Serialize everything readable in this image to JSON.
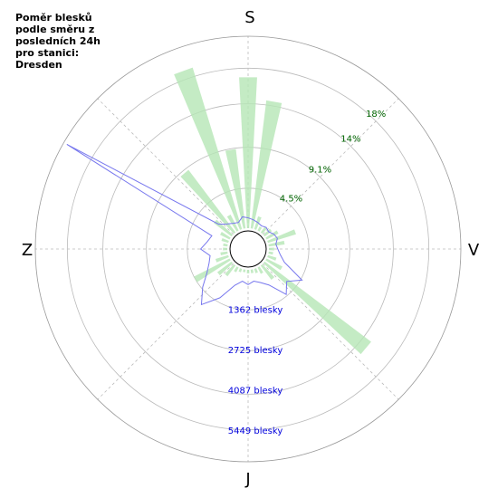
{
  "chart_data": {
    "type": "polar",
    "title": [
      "Poměr blesků",
      "podle směru z",
      "posledních 24h",
      "pro stanici:",
      "Dresden"
    ],
    "compass": [
      "S",
      "V",
      "J",
      "Z"
    ],
    "directions": [
      0,
      10,
      20,
      30,
      40,
      50,
      60,
      70,
      80,
      90,
      100,
      110,
      120,
      130,
      140,
      150,
      160,
      170,
      180,
      190,
      200,
      210,
      220,
      230,
      240,
      250,
      260,
      270,
      280,
      290,
      300,
      310,
      320,
      330,
      340,
      350
    ],
    "series": [
      {
        "color": "#b5e6b5",
        "axis": "r",
        "values": [
          17,
          14.5,
          1.5,
          0.5,
          0.8,
          1,
          1.5,
          3.3,
          1.8,
          0.6,
          0.5,
          1,
          2,
          15,
          2,
          0.8,
          0.5,
          0.4,
          0.4,
          0.3,
          0.4,
          0.6,
          1.5,
          2,
          4.5,
          1.5,
          0.8,
          0.5,
          0.5,
          0.8,
          1.2,
          2.5,
          8.8,
          2,
          19,
          9
        ]
      },
      {
        "color": "#7777ee",
        "axis": "r2",
        "values": [
          350,
          300,
          250,
          200,
          250,
          200,
          300,
          350,
          250,
          300,
          400,
          600,
          1400,
          1000,
          1300,
          700,
          500,
          400,
          500,
          400,
          600,
          1200,
          1750,
          1300,
          900,
          700,
          600,
          900,
          700,
          600,
          6366,
          600,
          400,
          300,
          250,
          400
        ]
      }
    ],
    "rlim": [
      0,
      21.6
    ],
    "rticks": [
      {
        "value": 4.5,
        "label": "4.5%"
      },
      {
        "value": 9.1,
        "label": "9.1%"
      },
      {
        "value": 14,
        "label": "14%"
      },
      {
        "value": 18,
        "label": "18%"
      }
    ],
    "r2lim": [
      0,
      6485
    ],
    "r2ticks": [
      {
        "value": 1362,
        "label": "1362 blesky"
      },
      {
        "value": 2725,
        "label": "2725 blesky"
      },
      {
        "value": 4087,
        "label": "4087 blesky"
      },
      {
        "value": 5449,
        "label": "5449 blesky"
      }
    ]
  }
}
